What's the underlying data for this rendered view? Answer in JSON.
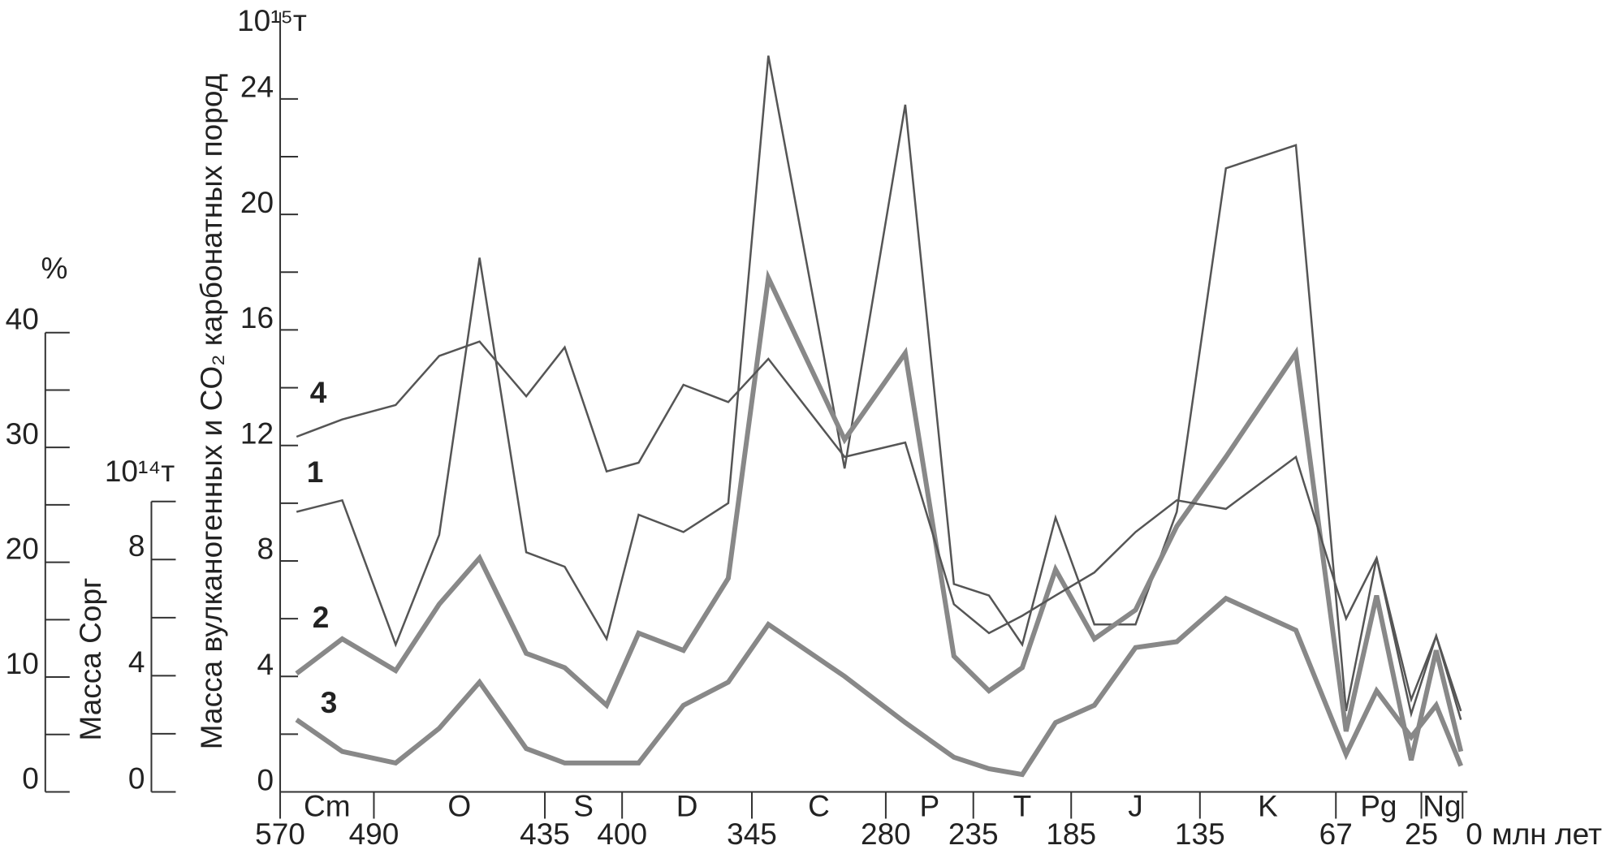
{
  "chart_data": {
    "type": "line",
    "y_label": "Масса вулканогенных и CO₂ карбонатных пород",
    "y_unit": "10¹⁵т",
    "x_unit": "млн лет",
    "x": [
      556,
      517,
      483,
      469,
      456,
      441,
      426,
      407,
      393,
      374,
      355,
      337,
      300,
      270,
      245,
      227,
      210,
      193,
      176,
      160,
      144,
      122,
      87,
      62,
      47,
      30,
      16,
      1
    ],
    "xticks": [
      570,
      490,
      435,
      400,
      345,
      280,
      235,
      185,
      135,
      67,
      25,
      0
    ],
    "periods": [
      "Cm",
      "O",
      "S",
      "D",
      "C",
      "P",
      "T",
      "J",
      "K",
      "Pg",
      "Ng"
    ],
    "ylim": [
      0,
      27
    ],
    "yticks": [
      0,
      4,
      8,
      12,
      16,
      20,
      24
    ],
    "yminor": [
      2,
      6,
      10,
      14,
      18,
      22
    ],
    "series": [
      {
        "name": "1",
        "color": "#555555",
        "width": 2.5,
        "values": [
          9.7,
          10.1,
          5.1,
          8.9,
          18.5,
          8.3,
          7.8,
          5.3,
          9.6,
          9.0,
          10.0,
          25.5,
          11.2,
          23.8,
          7.2,
          6.8,
          5.1,
          9.5,
          5.8,
          5.8,
          9.7,
          21.6,
          22.4,
          2.8,
          8.1,
          2.7,
          5.4,
          2.5
        ]
      },
      {
        "name": "2",
        "color": "#888888",
        "width": 6,
        "values": [
          4.1,
          5.3,
          4.2,
          6.5,
          8.1,
          4.8,
          4.3,
          3.0,
          5.5,
          4.9,
          7.4,
          17.8,
          12.2,
          15.2,
          4.7,
          3.5,
          4.3,
          7.7,
          5.3,
          6.3,
          9.2,
          11.6,
          15.2,
          2.1,
          6.8,
          1.1,
          4.9,
          1.4
        ]
      },
      {
        "name": "3",
        "color": "#888888",
        "width": 6,
        "values": [
          2.5,
          1.4,
          1.0,
          2.2,
          3.8,
          1.5,
          1.0,
          1.0,
          1.0,
          3.0,
          3.8,
          5.8,
          4.0,
          2.4,
          1.2,
          0.8,
          0.6,
          2.4,
          3.0,
          5.0,
          5.2,
          6.7,
          5.6,
          1.3,
          3.5,
          1.9,
          3.0,
          0.9
        ]
      },
      {
        "name": "4",
        "color": "#555555",
        "width": 2.5,
        "values": [
          12.3,
          12.9,
          13.4,
          15.1,
          15.6,
          13.7,
          15.4,
          11.1,
          11.4,
          14.1,
          13.5,
          15.0,
          11.6,
          12.1,
          6.5,
          5.5,
          6.1,
          6.8,
          7.6,
          9.0,
          10.1,
          9.8,
          11.6,
          6.0,
          8.1,
          3.2,
          5.4,
          2.8
        ]
      }
    ],
    "axes": [
      {
        "label": "Масса Сорг",
        "unit": "10¹⁴т",
        "lim": [
          0,
          10
        ],
        "ticks": [
          0,
          4,
          8
        ],
        "minor": [
          2,
          6,
          10
        ]
      },
      {
        "unit": "%",
        "lim": [
          0,
          40
        ],
        "ticks": [
          0,
          10,
          20,
          30,
          40
        ],
        "minor": [
          5,
          15,
          25,
          35
        ]
      }
    ]
  }
}
